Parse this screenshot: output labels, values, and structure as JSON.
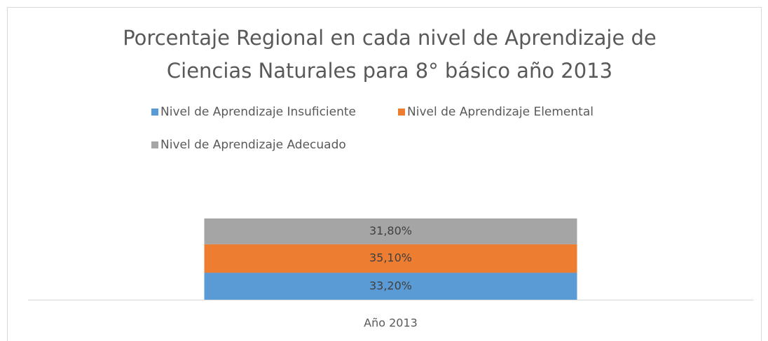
{
  "chart_data": {
    "type": "stacked_bar",
    "title": [
      "Porcentaje Regional en cada nivel de Aprendizaje de",
      "Ciencias Naturales para 8° básico año 2013"
    ],
    "categories": [
      "Año 2013"
    ],
    "series": [
      {
        "name": "Nivel de Aprendizaje Insuficiente",
        "color": "#5b9bd5",
        "values": [
          33.2
        ],
        "value_labels": [
          "33,20%"
        ]
      },
      {
        "name": "Nivel de Aprendizaje Elemental",
        "color": "#ed7d31",
        "values": [
          35.1
        ],
        "value_labels": [
          "35,10%"
        ]
      },
      {
        "name": "Nivel de Aprendizaje Adecuado",
        "color": "#a5a5a5",
        "values": [
          31.8
        ],
        "value_labels": [
          "31,80%"
        ]
      }
    ],
    "legend": "top"
  }
}
